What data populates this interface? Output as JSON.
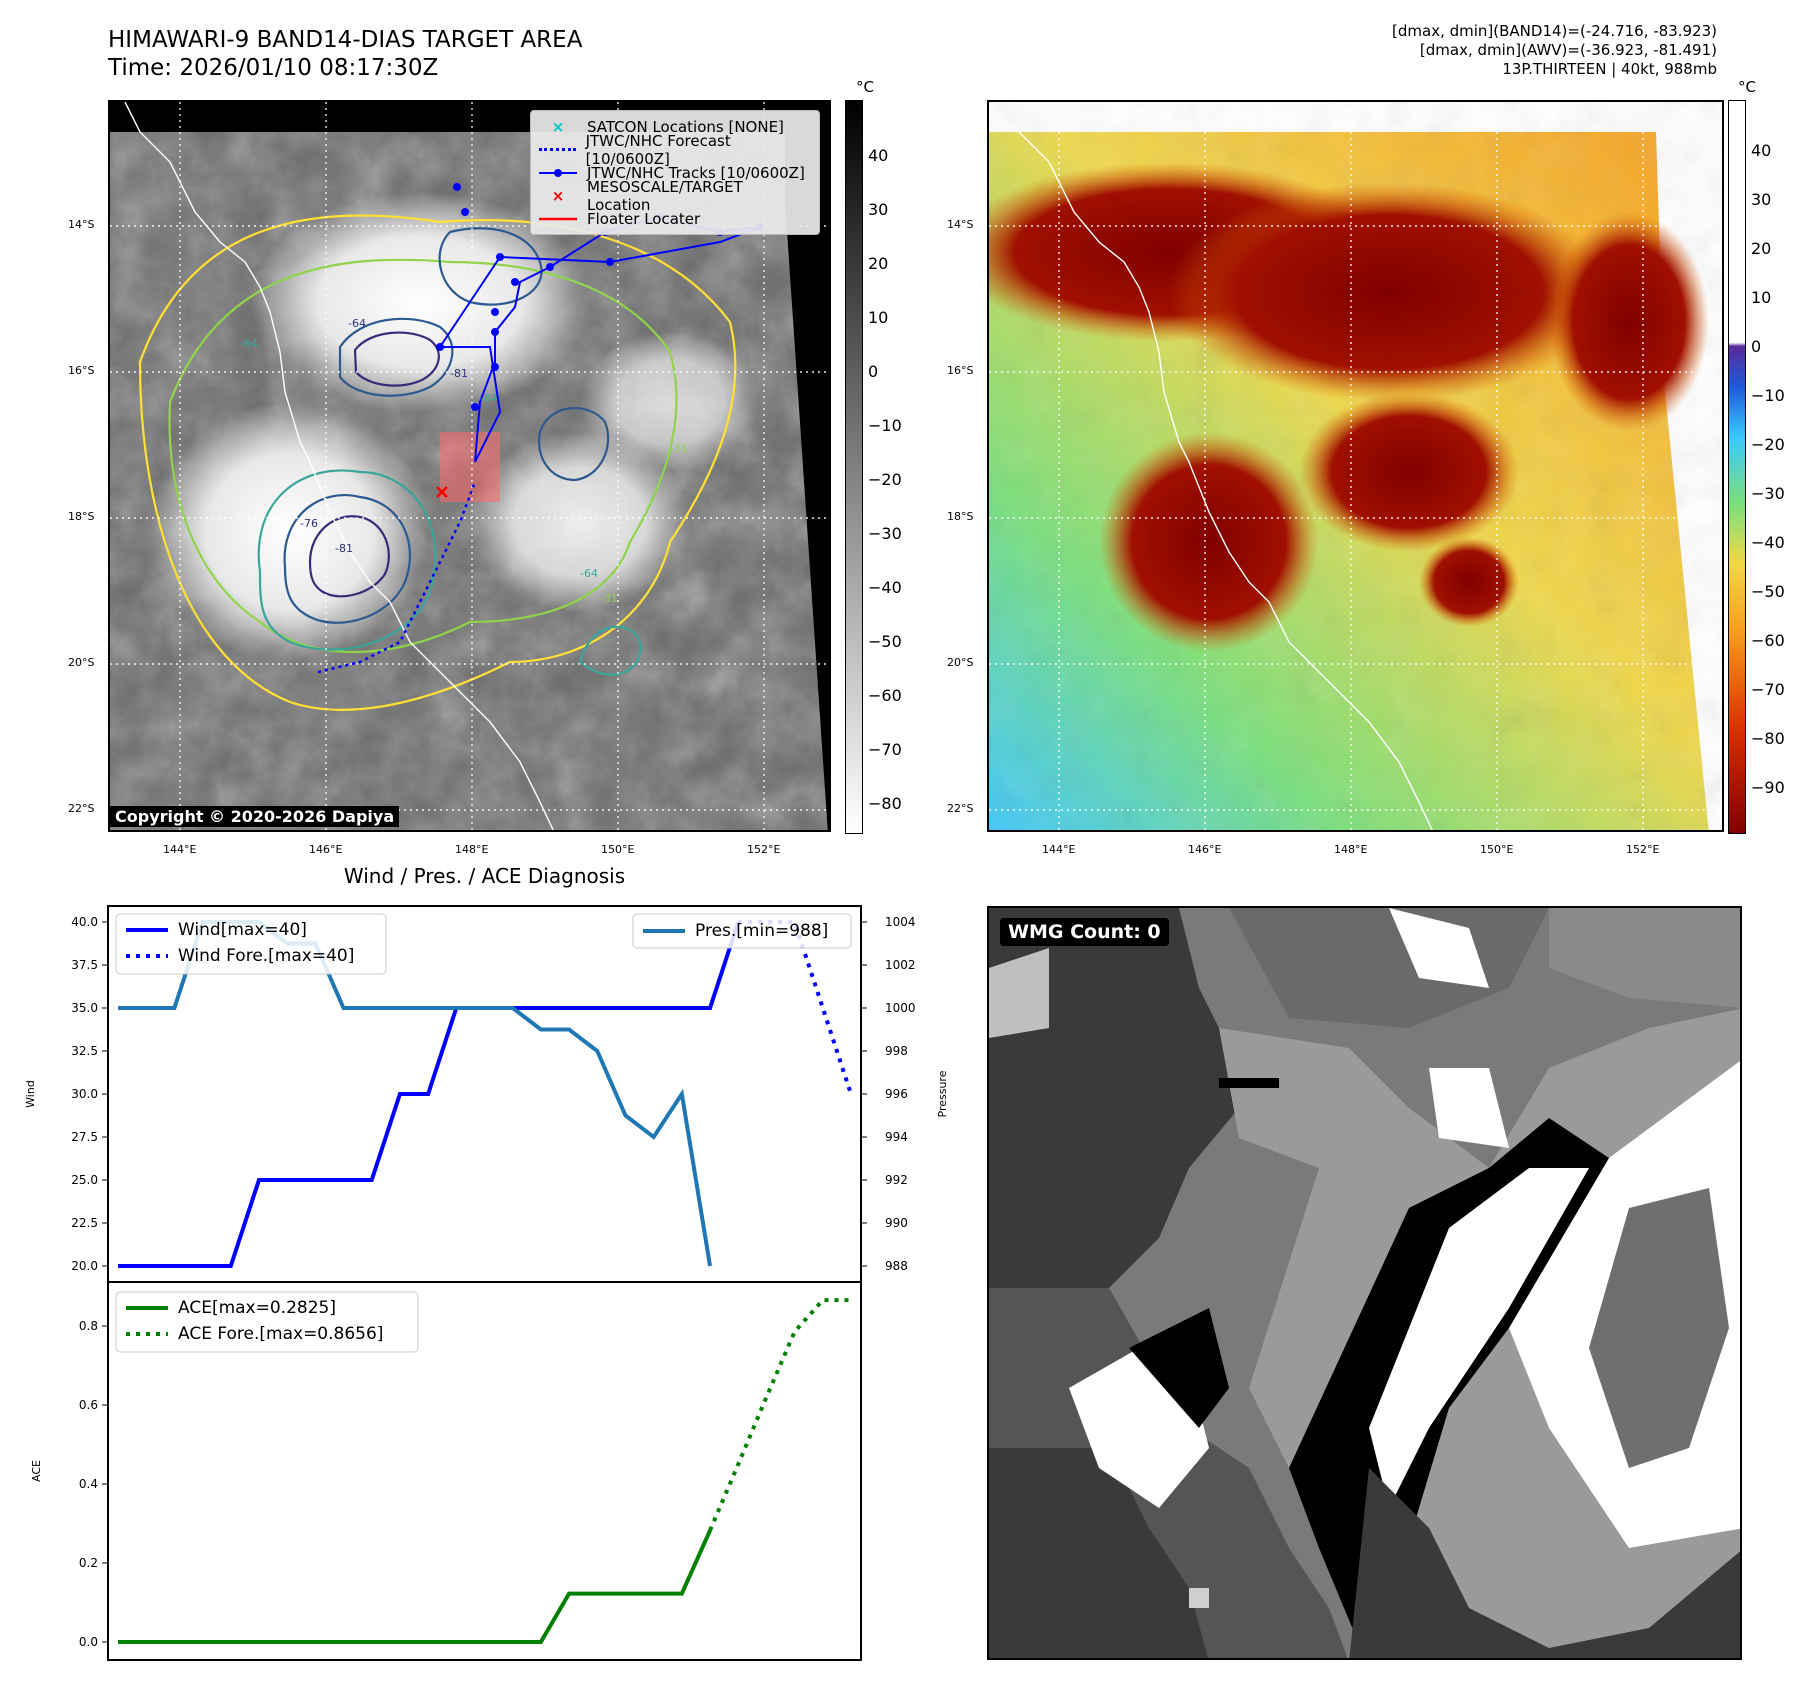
{
  "header": {
    "title_line1": "HIMAWARI-9 BAND14-DIAS TARGET AREA",
    "title_line2": "Time: 2026/01/10 08:17:30Z",
    "meta_line1": "[dmax, dmin](BAND14)=(-24.716, -83.923)",
    "meta_line2": "[dmax, dmin](AWV)=(-36.923, -81.491)",
    "meta_line3": "13P.THIRTEEN | 40kt, 988mb"
  },
  "ir_map": {
    "unit": "°C",
    "lat_labels": [
      "14°S",
      "16°S",
      "18°S",
      "20°S",
      "22°S"
    ],
    "lon_labels": [
      "144°E",
      "146°E",
      "148°E",
      "150°E",
      "152°E"
    ],
    "colorbar_ticks": [
      "40",
      "30",
      "20",
      "10",
      "0",
      "−10",
      "−20",
      "−30",
      "−40",
      "−50",
      "−60",
      "−70",
      "−80"
    ],
    "contour_labels": [
      "-64",
      "-81",
      "-64",
      "-31",
      "-64",
      "-81",
      "-76",
      "-31",
      "-64"
    ],
    "copyright": "Copyright © 2020-2026 Dapiya",
    "legend": [
      {
        "label": "SATCON Locations [NONE]",
        "color": "#00c8c8",
        "marker": "x"
      },
      {
        "label": "JTWC/NHC Forecast [10/0600Z]",
        "color": "#0000ff",
        "marker": "dotted"
      },
      {
        "label": "JTWC/NHC Tracks [10/0600Z]",
        "color": "#0000ff",
        "marker": "line-dot"
      },
      {
        "label": "MESOSCALE/TARGET Location",
        "color": "#ff0000",
        "marker": "x"
      },
      {
        "label": "Floater Locater",
        "color": "#ff0000",
        "marker": "line"
      }
    ]
  },
  "wv_map": {
    "unit": "°C",
    "lat_labels": [
      "14°S",
      "16°S",
      "18°S",
      "20°S",
      "22°S"
    ],
    "lon_labels": [
      "144°E",
      "146°E",
      "148°E",
      "150°E",
      "152°E"
    ],
    "colorbar_ticks": [
      "40",
      "30",
      "20",
      "10",
      "0",
      "−10",
      "−20",
      "−30",
      "−40",
      "−50",
      "−60",
      "−70",
      "−80",
      "−90"
    ]
  },
  "wmg": {
    "badge": "WMG Count: 0"
  },
  "chart_data": [
    {
      "type": "line",
      "title": "Wind / Pres. / ACE Diagnosis",
      "ylabel": "Wind",
      "ylabel2": "Pressure",
      "ylim": [
        19.6,
        40.5
      ],
      "ylim2": [
        987.6,
        1004.4
      ],
      "yticks": [
        "40.0",
        "37.5",
        "35.0",
        "32.5",
        "30.0",
        "27.5",
        "25.0",
        "22.5",
        "20.0"
      ],
      "yticks2": [
        "1004",
        "1002",
        "1000",
        "998",
        "996",
        "994",
        "992",
        "990",
        "988"
      ],
      "x": [
        0,
        1,
        2,
        3,
        4,
        5,
        6,
        7,
        8,
        9,
        10,
        11,
        12,
        13,
        14,
        15,
        16,
        17,
        18,
        19,
        20,
        21,
        22,
        23,
        24,
        25,
        26
      ],
      "series": [
        {
          "name": "Wind[max=40]",
          "color": "#0000ff",
          "style": "solid",
          "axis": "left",
          "values": [
            20,
            20,
            20,
            20,
            20,
            25,
            25,
            25,
            25,
            25,
            30,
            30,
            35,
            35,
            35,
            35,
            35,
            35,
            35,
            35,
            35,
            35,
            40,
            null,
            null,
            null,
            null
          ]
        },
        {
          "name": "Wind Fore.[max=40]",
          "color": "#0000ff",
          "style": "dotted",
          "axis": "left",
          "values": [
            null,
            null,
            null,
            null,
            null,
            null,
            null,
            null,
            null,
            null,
            null,
            null,
            null,
            null,
            null,
            null,
            null,
            null,
            null,
            null,
            null,
            null,
            40,
            40,
            40,
            35,
            30
          ]
        },
        {
          "name": "Pres.[min=988]",
          "color": "#1f77b4",
          "style": "solid",
          "axis": "right",
          "values": [
            1000,
            1000,
            1000,
            1004,
            1004,
            1004,
            1003,
            1003,
            1000,
            1000,
            1000,
            1000,
            1000,
            1000,
            1000,
            999,
            999,
            998,
            995,
            994,
            996,
            988,
            null,
            null,
            null,
            null,
            null
          ]
        }
      ]
    },
    {
      "type": "line",
      "ylabel": "ACE",
      "ylim": [
        -0.045,
        0.91
      ],
      "yticks": [
        "0.8",
        "0.6",
        "0.4",
        "0.2",
        "0.0"
      ],
      "x": [
        0,
        1,
        2,
        3,
        4,
        5,
        6,
        7,
        8,
        9,
        10,
        11,
        12,
        13,
        14,
        15,
        16,
        17,
        18,
        19,
        20,
        21,
        22,
        23,
        24,
        25,
        26
      ],
      "series": [
        {
          "name": "ACE[max=0.2825]",
          "color": "#008000",
          "style": "solid",
          "values": [
            0,
            0,
            0,
            0,
            0,
            0,
            0,
            0,
            0,
            0,
            0,
            0,
            0,
            0,
            0,
            0,
            0.1225,
            0.1225,
            0.1225,
            0.1225,
            0.1225,
            0.2825,
            null,
            null,
            null,
            null,
            null
          ]
        },
        {
          "name": "ACE Fore.[max=0.8656]",
          "color": "#008000",
          "style": "dotted",
          "values": [
            null,
            null,
            null,
            null,
            null,
            null,
            null,
            null,
            null,
            null,
            null,
            null,
            null,
            null,
            null,
            null,
            null,
            null,
            null,
            null,
            null,
            0.2825,
            0.45,
            0.62,
            0.7856,
            0.8656,
            0.8656
          ]
        }
      ]
    }
  ]
}
